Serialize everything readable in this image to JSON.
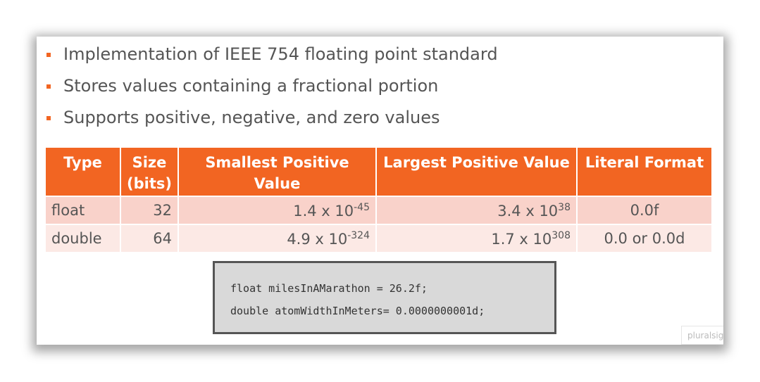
{
  "bullets": [
    "Implementation of IEEE 754 floating point standard",
    "Stores values containing a fractional portion",
    "Supports positive, negative, and zero values"
  ],
  "table": {
    "header": [
      "Type",
      "Size (bits)",
      "Smallest Positive Value",
      "Largest Positive Value",
      "Literal Format"
    ],
    "rows": [
      [
        "float",
        32,
        {
          "base": "1.4 x 10",
          "exp": "-45"
        },
        {
          "base": "3.4 x 10",
          "exp": "38"
        },
        "0.0f"
      ],
      [
        "double",
        64,
        {
          "base": "4.9 x 10",
          "exp": "-324"
        },
        {
          "base": "1.7 x 10",
          "exp": "308"
        },
        "0.0 or 0.0d"
      ]
    ]
  },
  "code": [
    "float milesInAMarathon = 26.2f;",
    "double atomWidthInMeters= 0.0000000001d;"
  ],
  "watermark": "pluralsig"
}
